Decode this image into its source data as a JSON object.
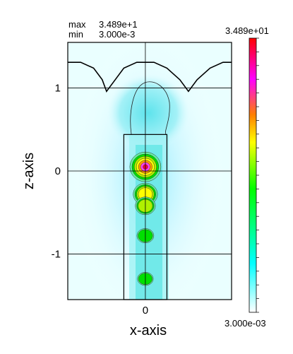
{
  "stats": {
    "max_label": "max",
    "max_value": "3.489e+1",
    "min_label": "min",
    "min_value": "3.000e-3"
  },
  "colorbar": {
    "top_label": "3.489e+01",
    "bottom_label": "3.000e-03",
    "stops": [
      "#ffffff",
      "#00ffff",
      "#00ff00",
      "#ffff00",
      "#ff8000",
      "#ff00ff",
      "#ff0000"
    ]
  },
  "chart_data": {
    "type": "heatmap",
    "title": "",
    "xlabel": "x-axis",
    "ylabel": "z-axis",
    "xlim": [
      -0.9,
      1.0
    ],
    "ylim": [
      -1.55,
      1.55
    ],
    "x_ticks": [
      {
        "value": 0,
        "label": "0"
      }
    ],
    "y_ticks": [
      {
        "value": 1,
        "label": "1"
      },
      {
        "value": 0,
        "label": "0"
      },
      {
        "value": -1,
        "label": "-1"
      }
    ],
    "grid": true,
    "value_range": [
      0.003,
      34.89
    ],
    "waveguide_box": {
      "x": [
        -0.25,
        0.25
      ],
      "z": [
        -1.55,
        0.44
      ]
    },
    "surface_profile": [
      [
        -0.9,
        1.31
      ],
      [
        -0.75,
        1.31
      ],
      [
        -0.6,
        1.24
      ],
      [
        -0.5,
        1.1
      ],
      [
        -0.45,
        0.96
      ],
      [
        -0.35,
        1.1
      ],
      [
        -0.25,
        1.24
      ],
      [
        -0.1,
        1.31
      ],
      [
        0.1,
        1.31
      ],
      [
        0.25,
        1.24
      ],
      [
        0.4,
        1.1
      ],
      [
        0.5,
        0.96
      ],
      [
        0.6,
        1.1
      ],
      [
        0.75,
        1.24
      ],
      [
        0.9,
        1.31
      ],
      [
        1.0,
        1.31
      ]
    ],
    "hotspots": [
      {
        "x": 0.0,
        "z": 0.05,
        "value": 34.89
      },
      {
        "x": 0.0,
        "z": -0.28,
        "value": 22.0
      },
      {
        "x": 0.0,
        "z": -0.42,
        "value": 14.0
      },
      {
        "x": 0.0,
        "z": -0.78,
        "value": 8.0
      },
      {
        "x": 0.0,
        "z": -1.3,
        "value": 6.0
      }
    ]
  }
}
